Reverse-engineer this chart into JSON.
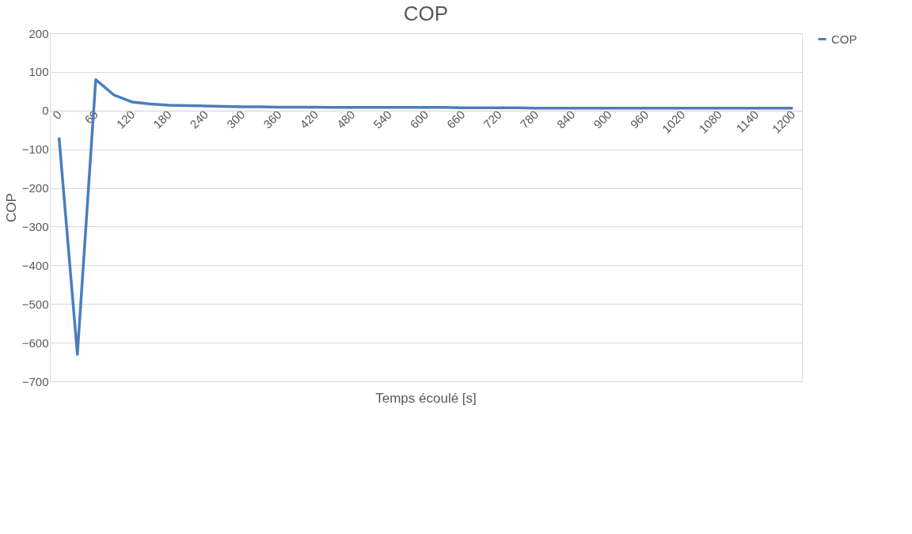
{
  "chart_data": {
    "type": "line",
    "title": "COP",
    "xlabel": "Temps écoulé [s]",
    "ylabel": "COP",
    "categories": [
      "0",
      null,
      "60",
      null,
      "120",
      null,
      "180",
      null,
      "240",
      null,
      "300",
      null,
      "360",
      null,
      "420",
      null,
      "480",
      null,
      "540",
      null,
      "600",
      null,
      "660",
      null,
      "720",
      null,
      "780",
      null,
      "840",
      null,
      "900",
      null,
      "960",
      null,
      "1020",
      null,
      "1080",
      null,
      "1140",
      null,
      "1200"
    ],
    "series": [
      {
        "name": "COP",
        "color": "#4a7ebb",
        "values": [
          -70,
          -630,
          80,
          40,
          22,
          17,
          14,
          13,
          12,
          11,
          10,
          10,
          9,
          9,
          9,
          8,
          8,
          8,
          8,
          8,
          8,
          8,
          7,
          7,
          7,
          7,
          6,
          6,
          6,
          6,
          6,
          6,
          6,
          6,
          6,
          6,
          6,
          6,
          6,
          6,
          6
        ]
      }
    ],
    "ylim": [
      -700,
      200
    ],
    "yticks": [
      -700,
      -600,
      -500,
      -400,
      -300,
      -200,
      -100,
      0,
      100,
      200
    ],
    "grid": "y",
    "legend": "right",
    "marker": "none",
    "line_style": "solid"
  }
}
